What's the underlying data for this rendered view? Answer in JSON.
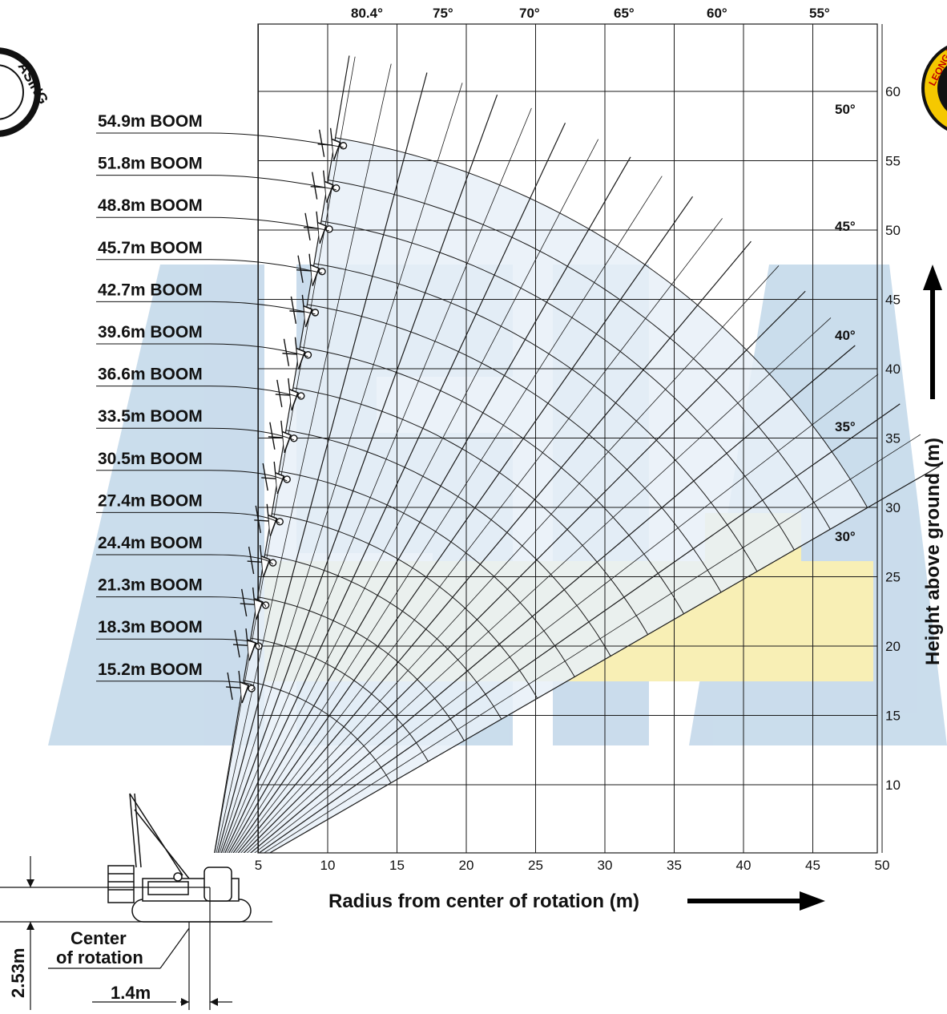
{
  "chart_data": {
    "type": "working-range diagram",
    "xlabel": "Radius from center of rotation (m)",
    "ylabel": "Height above ground (m)",
    "x_ticks": [
      5,
      10,
      15,
      20,
      25,
      30,
      35,
      40,
      45,
      50
    ],
    "y_ticks": [
      10,
      15,
      20,
      25,
      30,
      35,
      40,
      45,
      50,
      55,
      60
    ],
    "xlim": [
      5,
      50
    ],
    "ylim": [
      5,
      66
    ],
    "boom_pivot": {
      "x": 1.4,
      "y": 2.53
    },
    "angle_labels_top": [
      "80.4°",
      "75°",
      "70°",
      "65°",
      "60°",
      "55°"
    ],
    "angle_labels_right": [
      "50°",
      "45°",
      "40°",
      "35°",
      "30°"
    ],
    "booms": [
      {
        "label": "54.9m BOOM",
        "length": 54.9
      },
      {
        "label": "51.8m BOOM",
        "length": 51.8
      },
      {
        "label": "48.8m BOOM",
        "length": 48.8
      },
      {
        "label": "45.7m BOOM",
        "length": 45.7
      },
      {
        "label": "42.7m BOOM",
        "length": 42.7
      },
      {
        "label": "39.6m BOOM",
        "length": 39.6
      },
      {
        "label": "36.6m BOOM",
        "length": 36.6
      },
      {
        "label": "33.5m BOOM",
        "length": 33.5
      },
      {
        "label": "30.5m BOOM",
        "length": 30.5
      },
      {
        "label": "27.4m BOOM",
        "length": 27.4
      },
      {
        "label": "24.4m BOOM",
        "length": 24.4
      },
      {
        "label": "21.3m BOOM",
        "length": 21.3
      },
      {
        "label": "18.3m BOOM",
        "length": 18.3
      },
      {
        "label": "15.2m BOOM",
        "length": 15.2
      }
    ],
    "grid": true
  },
  "annotations": {
    "center_of_rotation": "Center\nof rotation",
    "dim_height": "2.53m",
    "dim_offset": "1.4m"
  },
  "colors": {
    "fill": "#e7f0f8",
    "line": "#1a1a1a",
    "watermark_blue": "#9fc1dd",
    "watermark_yellow": "#f3e27a",
    "logo_yellow": "#f5c800"
  },
  "logos": {
    "left_text": "ASING",
    "right_text": "LEONG KIANG"
  }
}
